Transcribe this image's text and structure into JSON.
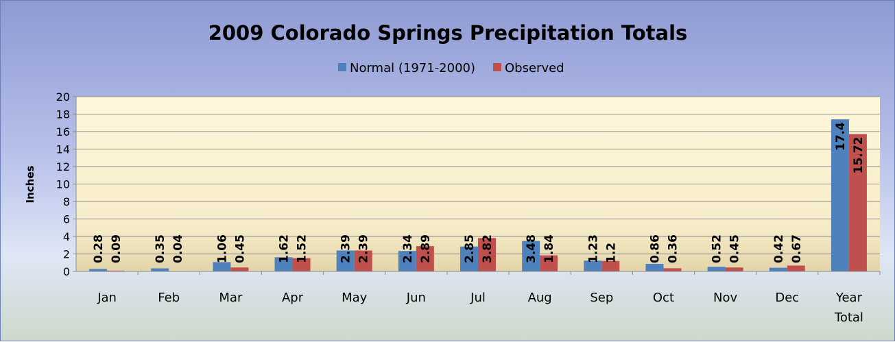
{
  "chart_data": {
    "type": "bar",
    "title": "2009 Colorado Springs Precipitation Totals",
    "ylabel": "Inches",
    "xlabel": "",
    "ylim": [
      0,
      20
    ],
    "yticks": [
      "0",
      "2",
      "4",
      "6",
      "8",
      "10",
      "12",
      "14",
      "16",
      "18",
      "20"
    ],
    "categories": [
      "Jan",
      "Feb",
      "Mar",
      "Apr",
      "May",
      "Jun",
      "Jul",
      "Aug",
      "Sep",
      "Oct",
      "Nov",
      "Dec",
      "Year Total"
    ],
    "series": [
      {
        "name": "Normal (1971-2000)",
        "color": "#4f81bd",
        "values": [
          0.28,
          0.35,
          1.06,
          1.62,
          2.39,
          2.34,
          2.85,
          3.48,
          1.23,
          0.86,
          0.52,
          0.42,
          17.4
        ],
        "labels": [
          "0.28",
          "0.35",
          "1.06",
          "1.62",
          "2.39",
          "2.34",
          "2.85",
          "3.48",
          "1.23",
          "0.86",
          "0.52",
          "0.42",
          "17.4"
        ]
      },
      {
        "name": "Observed",
        "color": "#c0504d",
        "values": [
          0.09,
          0.04,
          0.45,
          1.52,
          2.39,
          2.89,
          3.82,
          1.84,
          1.2,
          0.36,
          0.45,
          0.67,
          15.72
        ],
        "labels": [
          "0.09",
          "0.04",
          "0.45",
          "1.52",
          "2.39",
          "2.89",
          "3.82",
          "1.84",
          "1.2",
          "0.36",
          "0.45",
          "0.67",
          "15.72"
        ]
      }
    ],
    "legend_position": "top",
    "grid": true,
    "plot_background": "#fdf5dc",
    "gridline_color": "#8b8b8b"
  }
}
